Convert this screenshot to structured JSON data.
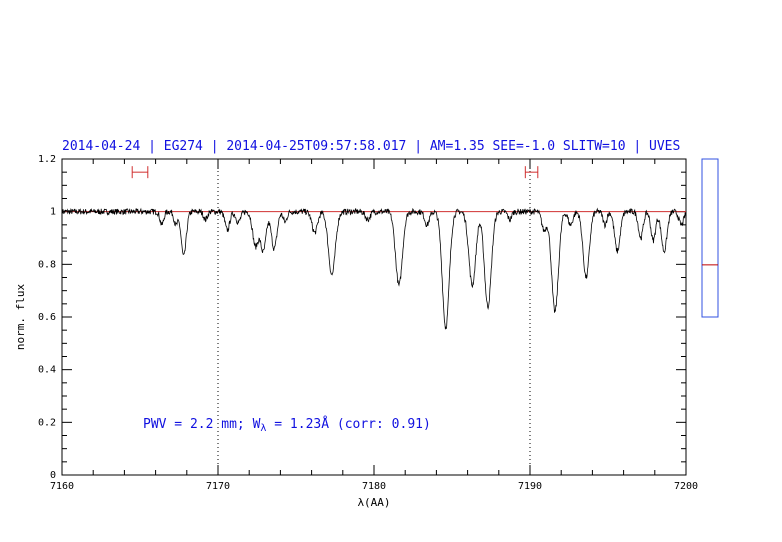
{
  "chart_data": {
    "type": "line",
    "title": "2014-04-24 | EG274 | 2014-04-25T09:57:58.017 | AM=1.35 SEE=-1.0 SLITW=10 | UVES",
    "xlabel": "λ(AA)",
    "ylabel": "norm. flux",
    "xlim": [
      7160,
      7200
    ],
    "ylim": [
      0,
      1.2
    ],
    "x_ticks": [
      "7160",
      "7170",
      "7180",
      "7190",
      "7200"
    ],
    "y_ticks": [
      "0",
      "0.2",
      "0.4",
      "0.6",
      "0.8",
      "1",
      "1.2"
    ],
    "grid": false,
    "reference_line": {
      "y": 1.0,
      "color": "#d03030"
    },
    "vertical_markers": [
      7170,
      7190
    ],
    "continuum_windows": [
      {
        "x0": 7164.5,
        "x1": 7165.5,
        "y": 1.15
      },
      {
        "x0": 7189.7,
        "x1": 7190.5,
        "y": 1.15
      }
    ],
    "absorption_lines": [
      {
        "center": 7166.4,
        "depth": 0.05,
        "width": 0.12
      },
      {
        "center": 7167.3,
        "depth": 0.05,
        "width": 0.12
      },
      {
        "center": 7167.8,
        "depth": 0.17,
        "width": 0.16
      },
      {
        "center": 7169.2,
        "depth": 0.03,
        "width": 0.12
      },
      {
        "center": 7170.6,
        "depth": 0.07,
        "width": 0.15
      },
      {
        "center": 7171.3,
        "depth": 0.04,
        "width": 0.15
      },
      {
        "center": 7172.4,
        "depth": 0.13,
        "width": 0.18
      },
      {
        "center": 7172.9,
        "depth": 0.15,
        "width": 0.18
      },
      {
        "center": 7173.6,
        "depth": 0.14,
        "width": 0.18
      },
      {
        "center": 7174.3,
        "depth": 0.04,
        "width": 0.12
      },
      {
        "center": 7176.2,
        "depth": 0.08,
        "width": 0.18
      },
      {
        "center": 7177.3,
        "depth": 0.24,
        "width": 0.22
      },
      {
        "center": 7179.6,
        "depth": 0.03,
        "width": 0.15
      },
      {
        "center": 7181.6,
        "depth": 0.28,
        "width": 0.22
      },
      {
        "center": 7183.4,
        "depth": 0.05,
        "width": 0.15
      },
      {
        "center": 7184.6,
        "depth": 0.44,
        "width": 0.22
      },
      {
        "center": 7186.3,
        "depth": 0.28,
        "width": 0.22
      },
      {
        "center": 7187.3,
        "depth": 0.36,
        "width": 0.22
      },
      {
        "center": 7188.7,
        "depth": 0.03,
        "width": 0.12
      },
      {
        "center": 7190.9,
        "depth": 0.07,
        "width": 0.15
      },
      {
        "center": 7191.6,
        "depth": 0.38,
        "width": 0.22
      },
      {
        "center": 7192.6,
        "depth": 0.05,
        "width": 0.15
      },
      {
        "center": 7193.6,
        "depth": 0.25,
        "width": 0.2
      },
      {
        "center": 7194.8,
        "depth": 0.05,
        "width": 0.12
      },
      {
        "center": 7195.6,
        "depth": 0.15,
        "width": 0.18
      },
      {
        "center": 7197.1,
        "depth": 0.1,
        "width": 0.15
      },
      {
        "center": 7197.9,
        "depth": 0.11,
        "width": 0.15
      },
      {
        "center": 7198.6,
        "depth": 0.15,
        "width": 0.18
      },
      {
        "center": 7199.7,
        "depth": 0.05,
        "width": 0.15
      }
    ],
    "annotation": {
      "prefix": "PWV = 2.2 mm; W",
      "subscript": "λ",
      "suffix": " = 1.23Å (corr: 0.91)"
    },
    "side_indicator": {
      "ylim": [
        0,
        1
      ],
      "marker_value": 0.33,
      "marker_color": "#c00000",
      "frame_color": "#3050e0"
    },
    "colors": {
      "spectrum": "#000000",
      "title": "#1010e0",
      "markers": "#d03030"
    }
  }
}
